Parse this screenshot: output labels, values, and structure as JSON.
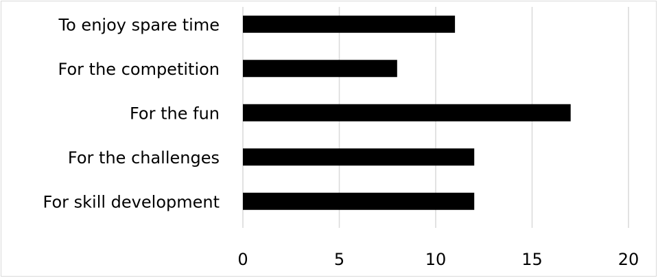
{
  "chart_data": {
    "type": "bar",
    "orientation": "horizontal",
    "categories": [
      "To enjoy spare time",
      "For the competition",
      "For the fun",
      "For the challenges",
      "For skill development"
    ],
    "values": [
      11,
      8,
      17,
      12,
      12
    ],
    "xlim": [
      0,
      20
    ],
    "x_ticks": [
      "0",
      "5",
      "10",
      "15",
      "20"
    ],
    "grid": true,
    "bar_color": "#000000",
    "grid_color": "#d9d9d9"
  }
}
